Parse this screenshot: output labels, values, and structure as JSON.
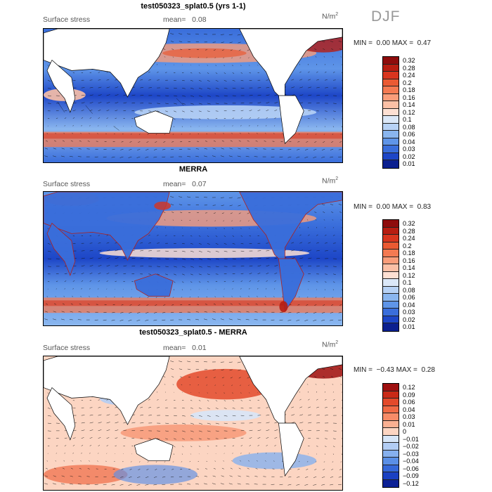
{
  "season": "DJF",
  "chart_data": [
    {
      "type": "heatmap",
      "title": "test050323_splat0.5 (yrs 1-1)",
      "variable": "Surface stress",
      "mean_label": "mean=",
      "mean": "0.08",
      "units_base": "N/m",
      "units_exp": "2",
      "min_label": "MIN =",
      "min": "0.00",
      "max_label": "MAX =",
      "max": "0.47",
      "colorbar": [
        "0.32",
        "0.28",
        "0.24",
        "0.2",
        "0.18",
        "0.16",
        "0.14",
        "0.12",
        "0.1",
        "0.08",
        "0.06",
        "0.04",
        "0.03",
        "0.02",
        "0.01"
      ],
      "colors": [
        "#8e0c0c",
        "#b71d11",
        "#d8351e",
        "#ea5a33",
        "#f47a52",
        "#f99d7a",
        "#fbc0a6",
        "#fde0d3",
        "#dbe8f8",
        "#b7d2f5",
        "#8ab6ef",
        "#5f95e8",
        "#3a6edb",
        "#1d46c7",
        "#0b1f8f"
      ]
    },
    {
      "type": "heatmap",
      "title": "MERRA",
      "variable": "Surface stress",
      "mean_label": "mean=",
      "mean": "0.07",
      "units_base": "N/m",
      "units_exp": "2",
      "min_label": "MIN =",
      "min": "0.00",
      "max_label": "MAX =",
      "max": "0.83",
      "colorbar": [
        "0.32",
        "0.28",
        "0.24",
        "0.2",
        "0.18",
        "0.16",
        "0.14",
        "0.12",
        "0.1",
        "0.08",
        "0.06",
        "0.04",
        "0.03",
        "0.02",
        "0.01"
      ],
      "colors": [
        "#8e0c0c",
        "#b71d11",
        "#d8351e",
        "#ea5a33",
        "#f47a52",
        "#f99d7a",
        "#fbc0a6",
        "#fde0d3",
        "#dbe8f8",
        "#b7d2f5",
        "#8ab6ef",
        "#5f95e8",
        "#3a6edb",
        "#1d46c7",
        "#0b1f8f"
      ]
    },
    {
      "type": "heatmap",
      "title": "test050323_splat0.5 - MERRA",
      "variable": "Surface stress",
      "mean_label": "mean=",
      "mean": "0.01",
      "units_base": "N/m",
      "units_exp": "2",
      "min_label": "MIN =",
      "min": "−0.43",
      "max_label": "MAX =",
      "max": "0.28",
      "colorbar": [
        "0.12",
        "0.09",
        "0.06",
        "0.04",
        "0.03",
        "0.01",
        "0",
        "−0.01",
        "−0.02",
        "−0.03",
        "−0.04",
        "−0.06",
        "−0.09",
        "−0.12"
      ],
      "colors": [
        "#9e1010",
        "#c92a17",
        "#e34a2b",
        "#f06a45",
        "#f78c68",
        "#fab092",
        "#fcd5c2",
        "#d7e6f8",
        "#b2cdf4",
        "#86b0ee",
        "#5a8fe6",
        "#3568d9",
        "#1b41c2",
        "#0c2196"
      ]
    }
  ]
}
